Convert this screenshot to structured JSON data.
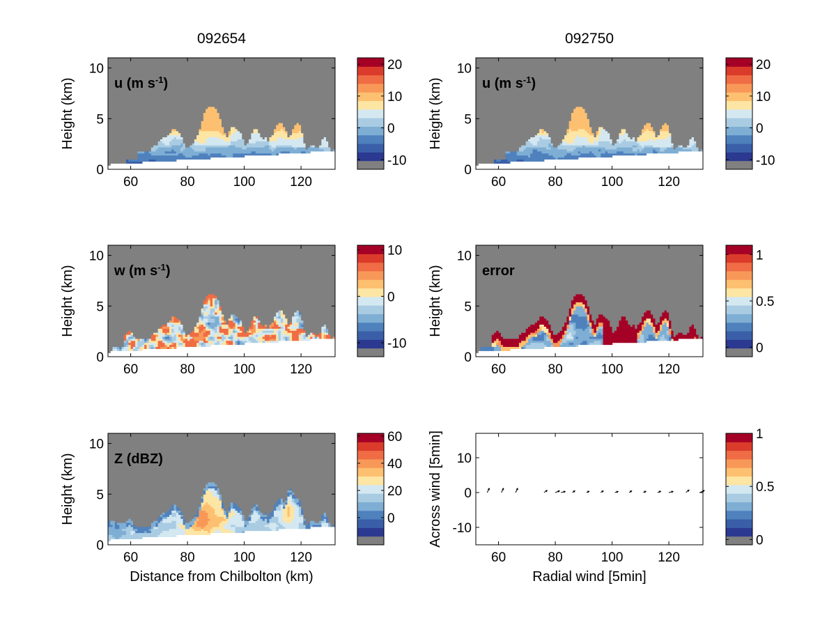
{
  "column_titles": [
    "092654",
    "092750"
  ],
  "colors": {
    "scale": [
      "#808080",
      "#2b3990",
      "#3a5fa8",
      "#4f81bd",
      "#7faed4",
      "#a9cce3",
      "#d4e8f1",
      "#fde5a4",
      "#fdc070",
      "#f89858",
      "#ef6c45",
      "#db3b2b",
      "#a50026"
    ],
    "masked": "#808080",
    "background": "#ffffff"
  },
  "chart_data": [
    {
      "type": "heatmap",
      "panel": "u",
      "label_main": "u (m s",
      "label_sup": "-1",
      "label_end": ")",
      "ylabel": "Height (km)",
      "xlabel": "",
      "xlim": [
        52,
        132
      ],
      "ylim": [
        0,
        11
      ],
      "xticks": [
        "60",
        "80",
        "100",
        "120"
      ],
      "yticks": [
        "0",
        "5",
        "10"
      ],
      "colorbar": {
        "vmin": -13,
        "vmax": 22,
        "ticks": [
          -10,
          0,
          10,
          20
        ],
        "tick_labels": [
          "-10",
          "0",
          "10",
          "20"
        ]
      },
      "field": "u",
      "column": 0
    },
    {
      "type": "heatmap",
      "panel": "u",
      "label_main": "u (m s",
      "label_sup": "-1",
      "label_end": ")",
      "ylabel": "Height (km)",
      "xlabel": "",
      "xlim": [
        52,
        132
      ],
      "ylim": [
        0,
        11
      ],
      "xticks": [
        "60",
        "80",
        "100",
        "120"
      ],
      "yticks": [
        "0",
        "5",
        "10"
      ],
      "colorbar": {
        "vmin": -13,
        "vmax": 22,
        "ticks": [
          -10,
          0,
          10,
          20
        ],
        "tick_labels": [
          "-10",
          "0",
          "10",
          "20"
        ]
      },
      "field": "u2",
      "column": 1
    },
    {
      "type": "heatmap",
      "panel": "w",
      "label_main": "w (m s",
      "label_sup": "-1",
      "label_end": ")",
      "ylabel": "Height (km)",
      "xlabel": "",
      "xlim": [
        52,
        132
      ],
      "ylim": [
        0,
        11
      ],
      "xticks": [
        "60",
        "80",
        "100",
        "120"
      ],
      "yticks": [
        "0",
        "5",
        "10"
      ],
      "colorbar": {
        "vmin": -13,
        "vmax": 11,
        "ticks": [
          -10,
          0,
          10
        ],
        "tick_labels": [
          "-10",
          "0",
          "10"
        ]
      },
      "field": "w",
      "column": 0
    },
    {
      "type": "heatmap",
      "panel": "error",
      "label_main": "error",
      "label_sup": "",
      "label_end": "",
      "ylabel": "Height (km)",
      "xlabel": "",
      "xlim": [
        52,
        132
      ],
      "ylim": [
        0,
        11
      ],
      "xticks": [
        "60",
        "80",
        "100",
        "120"
      ],
      "yticks": [
        "0",
        "5",
        "10"
      ],
      "colorbar": {
        "vmin": -0.1,
        "vmax": 1.1,
        "ticks": [
          0,
          0.5,
          1
        ],
        "tick_labels": [
          "0",
          "0.5",
          "1"
        ]
      },
      "field": "error",
      "column": 1
    },
    {
      "type": "heatmap",
      "panel": "Z",
      "label_main": "Z (dBZ)",
      "label_sup": "",
      "label_end": "",
      "ylabel": "Height (km)",
      "xlabel": "Distance from Chilbolton (km)",
      "xlim": [
        52,
        132
      ],
      "ylim": [
        0,
        11
      ],
      "xticks": [
        "60",
        "80",
        "100",
        "120"
      ],
      "yticks": [
        "0",
        "5",
        "10"
      ],
      "colorbar": {
        "vmin": -20,
        "vmax": 62,
        "ticks": [
          0,
          20,
          40,
          60
        ],
        "tick_labels": [
          "0",
          "20",
          "40",
          "60"
        ]
      },
      "field": "Z",
      "column": 0
    },
    {
      "type": "scatter",
      "panel": "quiver",
      "label_main": "",
      "label_sup": "",
      "label_end": "",
      "ylabel": "Across wind [5min]",
      "xlabel": "Radial wind [5min]",
      "xlim": [
        52,
        132
      ],
      "ylim": [
        -15,
        17
      ],
      "xticks": [
        "60",
        "80",
        "100",
        "120"
      ],
      "yticks": [
        "-10",
        "0",
        "10"
      ],
      "colorbar": {
        "vmin": -0.05,
        "vmax": 1.0,
        "ticks": [
          0,
          0.5,
          1
        ],
        "tick_labels": [
          "0",
          "0.5",
          "1"
        ]
      },
      "arrows": [
        {
          "x": 56,
          "y": 0,
          "u": 1.0,
          "v": 2.0
        },
        {
          "x": 61,
          "y": 0,
          "u": 1.0,
          "v": 2.0
        },
        {
          "x": 66,
          "y": 0,
          "u": 1.0,
          "v": 2.0
        },
        {
          "x": 76,
          "y": 0,
          "u": 1.5,
          "v": 1.0
        },
        {
          "x": 80,
          "y": 0,
          "u": 2.0,
          "v": 0.8
        },
        {
          "x": 82,
          "y": 0,
          "u": 2.0,
          "v": 0.5
        },
        {
          "x": 86,
          "y": 0,
          "u": 1.2,
          "v": 0.8
        },
        {
          "x": 91,
          "y": 0,
          "u": 1.2,
          "v": 0.6
        },
        {
          "x": 96,
          "y": 0,
          "u": 1.2,
          "v": 0.8
        },
        {
          "x": 101,
          "y": 0,
          "u": 1.5,
          "v": 0.5
        },
        {
          "x": 106,
          "y": 0,
          "u": 1.2,
          "v": 0.8
        },
        {
          "x": 111,
          "y": 0,
          "u": 1.2,
          "v": 0.6
        },
        {
          "x": 116,
          "y": 0,
          "u": 1.5,
          "v": 0.6
        },
        {
          "x": 120,
          "y": 0,
          "u": 2.0,
          "v": 0.5
        },
        {
          "x": 126,
          "y": 0,
          "u": 1.5,
          "v": 1.2
        },
        {
          "x": 131,
          "y": 0,
          "u": 2.0,
          "v": 1.0
        }
      ],
      "column": 1
    }
  ]
}
